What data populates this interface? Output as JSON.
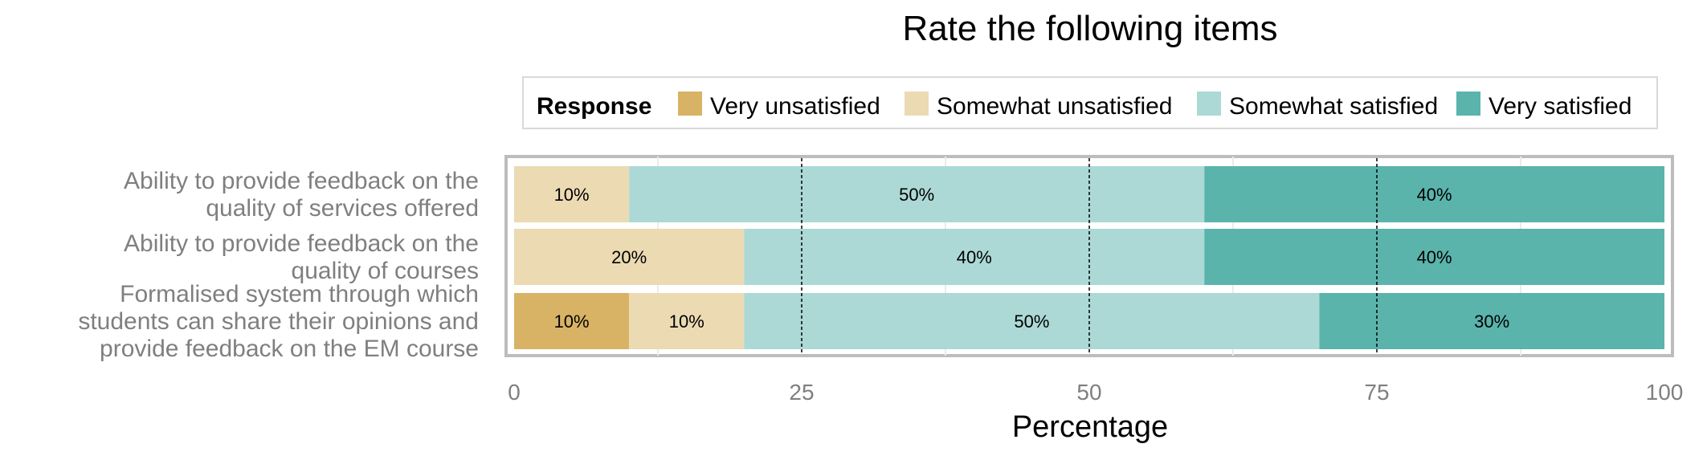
{
  "chart_data": {
    "type": "bar",
    "orientation": "horizontal",
    "stacked": true,
    "title": "Rate the following items",
    "xlabel": "Percentage",
    "ylabel": "",
    "xlim": [
      0,
      100
    ],
    "xticks": [
      0,
      25,
      50,
      75,
      100
    ],
    "legend": {
      "title": "Response",
      "placement": "top"
    },
    "categories": [
      "Ability to provide feedback on the quality of services offered",
      "Ability to provide feedback on the quality of courses",
      "Formalised system through which students can share their opinions and provide feedback on the EM course"
    ],
    "category_label_lines": [
      [
        "Ability to provide feedback on the",
        "quality of services offered"
      ],
      [
        "Ability to provide feedback on the",
        "quality of courses"
      ],
      [
        "Formalised system through which",
        "students can share their opinions and",
        "provide feedback on the EM course"
      ]
    ],
    "series": [
      {
        "name": "Very unsatisfied",
        "color": "#d8b365",
        "values": [
          0,
          0,
          10
        ],
        "labels": [
          "",
          "",
          "10%"
        ]
      },
      {
        "name": "Somewhat unsatisfied",
        "color": "#ebdab2",
        "values": [
          10,
          20,
          10
        ],
        "labels": [
          "10%",
          "20%",
          "10%"
        ]
      },
      {
        "name": "Somewhat satisfied",
        "color": "#acd9d5",
        "values": [
          50,
          40,
          50
        ],
        "labels": [
          "50%",
          "40%",
          "50%"
        ]
      },
      {
        "name": "Very satisfied",
        "color": "#5ab4ac",
        "values": [
          40,
          40,
          30
        ],
        "labels": [
          "40%",
          "40%",
          "30%"
        ]
      }
    ],
    "grid": true,
    "reference_lines": [
      25,
      50,
      75
    ]
  }
}
